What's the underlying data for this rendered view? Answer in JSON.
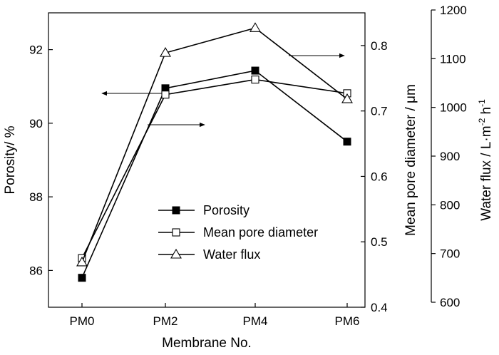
{
  "chart_data": {
    "type": "line",
    "categories": [
      "PM0",
      "PM2",
      "PM4",
      "PM6"
    ],
    "xlabel": "Membrane No.",
    "axes": {
      "left": {
        "label": "Porosity/ %",
        "ylim": [
          85,
          93
        ],
        "ticks": [
          86,
          88,
          90,
          92
        ],
        "tick_labels": [
          "86",
          "88",
          "90",
          "92"
        ]
      },
      "right1": {
        "label": "Mean pore diameter / μm",
        "ylim": [
          0.4,
          0.85
        ],
        "ticks": [
          0.4,
          0.5,
          0.6,
          0.7,
          0.8
        ],
        "tick_labels": [
          "0.4",
          "0.5",
          "0.6",
          "0.7",
          "0.8"
        ]
      },
      "right2": {
        "label_parts": [
          "Water flux / L·m",
          "-2",
          " h",
          "-1"
        ],
        "ylim": [
          600,
          1200
        ],
        "ticks": [
          600,
          700,
          800,
          900,
          1000,
          1100,
          1200
        ],
        "tick_labels": [
          "600",
          "700",
          "800",
          "900",
          "1000",
          "1100",
          "1200"
        ]
      }
    },
    "series": [
      {
        "name": "Porosity",
        "axis": "left",
        "marker": "filled-square",
        "values": [
          85.8,
          90.95,
          91.43,
          89.5
        ]
      },
      {
        "name": "Mean pore diameter",
        "axis": "right1",
        "marker": "open-square",
        "values": [
          0.475,
          0.725,
          0.748,
          0.727
        ]
      },
      {
        "name": "Water flux",
        "axis": "right2",
        "marker": "open-triangle",
        "values": [
          682,
          1112,
          1163,
          1017
        ]
      }
    ],
    "legend_position": "bottom-center",
    "annotations": [
      {
        "direction": "left",
        "points_to": "left"
      },
      {
        "direction": "right",
        "points_to": "right1"
      },
      {
        "direction": "right",
        "points_to": "right2"
      }
    ],
    "grid": false
  }
}
